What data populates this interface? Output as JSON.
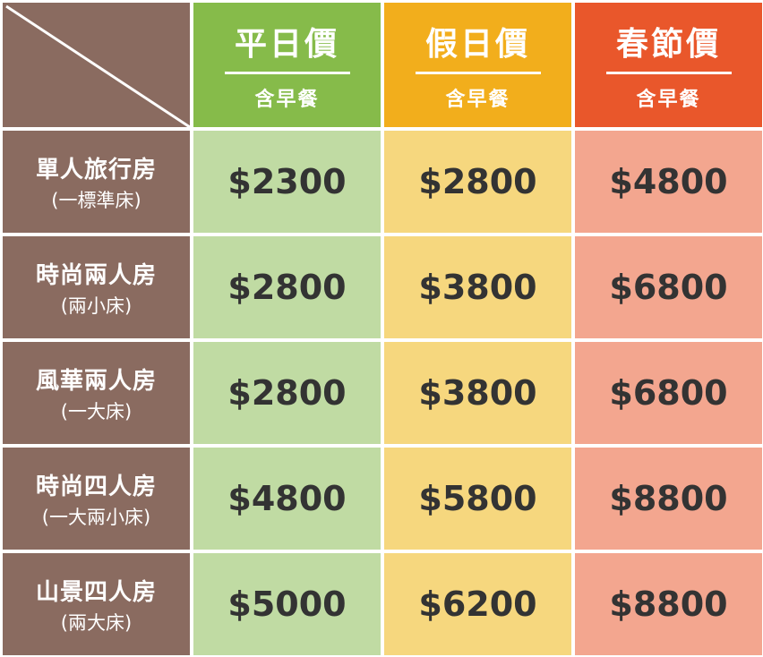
{
  "colors": {
    "room_bg": "#8a6b60",
    "weekday_header": "#86bb4a",
    "holiday_header": "#f2ae1c",
    "newyear_header": "#e9572b",
    "weekday_cell": "#c0dba3",
    "holiday_cell": "#f6d77e",
    "newyear_cell": "#f3a68f"
  },
  "headers": [
    {
      "title": "平日價",
      "subtitle": "含早餐"
    },
    {
      "title": "假日價",
      "subtitle": "含早餐"
    },
    {
      "title": "春節價",
      "subtitle": "含早餐"
    }
  ],
  "rooms": [
    {
      "name": "單人旅行房",
      "bed": "(一標準床)",
      "prices": [
        "$2300",
        "$2800",
        "$4800"
      ]
    },
    {
      "name": "時尚兩人房",
      "bed": "(兩小床)",
      "prices": [
        "$2800",
        "$3800",
        "$6800"
      ]
    },
    {
      "name": "風華兩人房",
      "bed": "(一大床)",
      "prices": [
        "$2800",
        "$3800",
        "$6800"
      ]
    },
    {
      "name": "時尚四人房",
      "bed": "(一大兩小床)",
      "prices": [
        "$4800",
        "$5800",
        "$8800"
      ]
    },
    {
      "name": "山景四人房",
      "bed": "(兩大床)",
      "prices": [
        "$5000",
        "$6200",
        "$8800"
      ]
    }
  ]
}
